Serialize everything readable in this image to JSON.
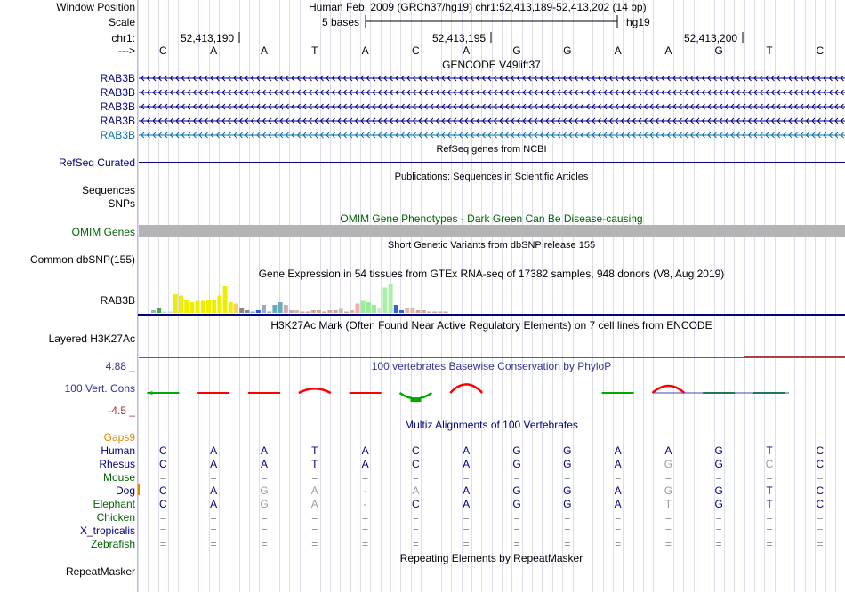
{
  "ruler": {
    "window_position_label": "Window Position",
    "window_position_value": "Human Feb. 2009 (GRCh37/hg19)   chr1:52,413,189-52,413,202 (14 bp)",
    "scale_label": "Scale",
    "scale_value": "5 bases",
    "assembly": "hg19",
    "chrom_label": "chr1:",
    "positions": [
      "52,413,190",
      "52,413,195",
      "52,413,200"
    ],
    "strand_label": "--->",
    "bases": [
      "C",
      "A",
      "A",
      "T",
      "A",
      "C",
      "A",
      "G",
      "G",
      "A",
      "A",
      "G",
      "T",
      "C"
    ]
  },
  "tracks": {
    "gencode": {
      "title": "GENCODE V49lift37",
      "items": [
        "RAB3B",
        "RAB3B",
        "RAB3B",
        "RAB3B",
        "RAB3B"
      ],
      "colors": [
        "#000080",
        "#000080",
        "#000080",
        "#000080",
        "#0a6fa8"
      ]
    },
    "refseq": {
      "title": "RefSeq genes from NCBI",
      "label": "RefSeq Curated"
    },
    "publications": {
      "title": "Publications: Sequences in Scientific Articles",
      "labels": [
        "Sequences",
        "SNPs"
      ]
    },
    "omim": {
      "title": "OMIM Gene Phenotypes - Dark Green Can Be Disease-causing",
      "label": "OMIM Genes",
      "color": "#006400"
    },
    "dbsnp": {
      "title": "Short Genetic Variants from dbSNP release 155",
      "label": "Common dbSNP(155)"
    },
    "gtex": {
      "title": "Gene Expression in 54 tissues from GTEx RNA-seq of 17382 samples, 948 donors (V8, Aug 2019)",
      "label": "RAB3B",
      "bar_levels": [
        0.1,
        0.2,
        0.05,
        0.05,
        0.7,
        0.65,
        0.5,
        0.4,
        0.45,
        0.45,
        0.5,
        0.5,
        0.65,
        1,
        0.4,
        0.35,
        0.2,
        0.1,
        0.05,
        0.1,
        0.3,
        0.05,
        0.3,
        0.4,
        0.3,
        0.1,
        0.1,
        0.05,
        0.05,
        0.1,
        0.1,
        0.05,
        0.1,
        0.1,
        0.15,
        0.05,
        0.1,
        0.35,
        0.45,
        0.4,
        0.3,
        0.2,
        0.95,
        1.1,
        0.3,
        0.1,
        0.2,
        0.2,
        0.1,
        0.1,
        0.05,
        0.05,
        0.05,
        0.05
      ],
      "bar_colors": [
        "#99bb99",
        "#44aa44",
        "#ccddcc",
        "#ccddcc",
        "#eeee00",
        "#eeee00",
        "#eeee00",
        "#eeee00",
        "#eeee00",
        "#eeee00",
        "#eeee00",
        "#eeee00",
        "#eeee00",
        "#eeee00",
        "#eeee00",
        "#ffcc66",
        "#888888",
        "#888888",
        "#66aaff",
        "#3355dd",
        "#99aacc",
        "#aaaaaa",
        "#66aabb",
        "#66aabb",
        "#ccaaaa",
        "#ccaaaa",
        "#ccbbaa",
        "#ccaa88",
        "#ccaa88",
        "#ccaa88",
        "#ccaa88",
        "#aaaaaa",
        "#ccaa99",
        "#ccaa99",
        "#ccbbaa",
        "#ccaa88",
        "#ccbbaa",
        "#ffaaaa",
        "#99ee99",
        "#99ee99",
        "#99ee99",
        "#dddddd",
        "#aaeeaa",
        "#aaeeaa",
        "#3366cc",
        "#3366cc",
        "#ddbbaa",
        "#ddbbaa",
        "#ccaa99",
        "#ccaa99",
        "#ccaa99",
        "#ccaa99",
        "#ccaa99",
        "#ccaa99"
      ]
    },
    "h3k27ac": {
      "title": "H3K27Ac Mark (Often Found Near Active Regulatory Elements) on 7 cell lines from ENCODE",
      "label": "Layered H3K27Ac"
    },
    "conservation": {
      "title": "100 vertebrates Basewise Conservation by PhyloP",
      "label": "100 Vert. Cons",
      "ymax": "4.88 _",
      "ymin": "-4.5 _",
      "scores": [
        -0.3,
        0.4,
        0.4,
        0.6,
        0.3,
        -0.8,
        1.2,
        0,
        0,
        -0.3,
        1.0,
        -0.2,
        -0.3,
        0
      ],
      "color_pos": "#ff0000",
      "color_neg": "#00aa00",
      "title_color": "#333399"
    },
    "multiz": {
      "title": "Multiz Alignments of 100 Vertebrates",
      "gaps_label": "Gaps9",
      "species": [
        {
          "name": "Human",
          "color": "#000080",
          "bases": [
            "C",
            "A",
            "A",
            "T",
            "A",
            "C",
            "A",
            "G",
            "G",
            "A",
            "A",
            "G",
            "T",
            "C"
          ]
        },
        {
          "name": "Rhesus",
          "color": "#000080",
          "bases": [
            "C",
            "A",
            "A",
            "T",
            "A",
            "C",
            "A",
            "G",
            "G",
            "A",
            "G",
            "G",
            "C",
            "C"
          ]
        },
        {
          "name": "Mouse",
          "color": "#006400",
          "bases": [
            "=",
            "=",
            "=",
            "=",
            "=",
            "=",
            "=",
            "=",
            "=",
            "=",
            "=",
            "=",
            "=",
            "="
          ]
        },
        {
          "name": "Dog",
          "color": "#000080",
          "bases": [
            "C",
            "A",
            "G",
            "A",
            "-",
            "A",
            "A",
            "G",
            "G",
            "A",
            "G",
            "G",
            "T",
            "C"
          ]
        },
        {
          "name": "Elephant",
          "color": "#006400",
          "bases": [
            "C",
            "A",
            "G",
            "A",
            "-",
            "C",
            "A",
            "G",
            "G",
            "A",
            "T",
            "G",
            "T",
            "C"
          ]
        },
        {
          "name": "Chicken",
          "color": "#006400",
          "bases": [
            "=",
            "=",
            "=",
            "=",
            "=",
            "=",
            "=",
            "=",
            "=",
            "=",
            "=",
            "=",
            "=",
            "="
          ]
        },
        {
          "name": "X_tropicalis",
          "color": "#000080",
          "bases": [
            "=",
            "=",
            "=",
            "=",
            "=",
            "=",
            "=",
            "=",
            "=",
            "=",
            "=",
            "=",
            "=",
            "="
          ]
        },
        {
          "name": "Zebrafish",
          "color": "#006400",
          "bases": [
            "=",
            "=",
            "=",
            "=",
            "=",
            "=",
            "=",
            "=",
            "=",
            "=",
            "=",
            "=",
            "=",
            "="
          ]
        }
      ]
    },
    "repeatmasker": {
      "title": "Repeating Elements by RepeatMasker",
      "label": "RepeatMasker"
    }
  }
}
